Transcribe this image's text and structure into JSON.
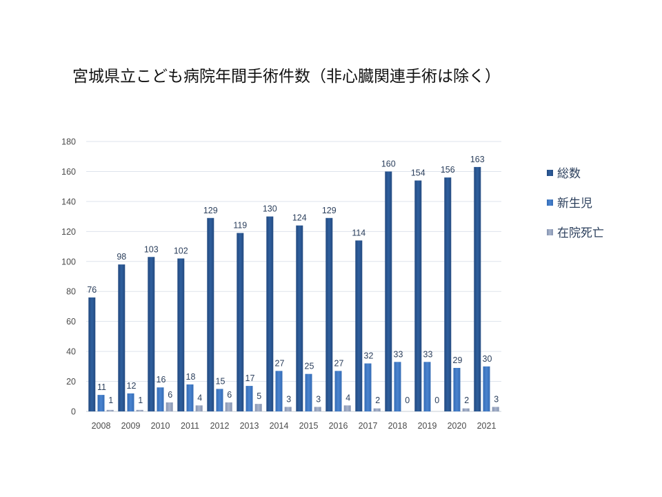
{
  "title": "宮城県立こども病院年間手術件数（非心臓関連手術は除く）",
  "chart_data": {
    "type": "bar",
    "title": "宮城県立こども病院年間手術件数（非心臓関連手術は除く）",
    "categories": [
      "2008",
      "2009",
      "2010",
      "2011",
      "2012",
      "2013",
      "2014",
      "2015",
      "2016",
      "2017",
      "2018",
      "2019",
      "2020",
      "2021"
    ],
    "series": [
      {
        "name": "総数",
        "values": [
          76,
          98,
          103,
          102,
          129,
          119,
          130,
          124,
          129,
          114,
          160,
          154,
          156,
          163
        ],
        "color": "#2d5a97"
      },
      {
        "name": "新生児",
        "values": [
          11,
          12,
          16,
          18,
          15,
          17,
          27,
          25,
          27,
          32,
          33,
          33,
          29,
          30
        ],
        "color": "#3f78c4"
      },
      {
        "name": "在院死亡",
        "values": [
          1,
          1,
          6,
          4,
          6,
          5,
          3,
          3,
          4,
          2,
          0,
          0,
          2,
          3
        ],
        "color": "#95a3bf"
      }
    ],
    "ylim": [
      0,
      180
    ],
    "yticks": [
      0,
      20,
      40,
      60,
      80,
      100,
      120,
      140,
      160,
      180
    ],
    "xlabel": "",
    "ylabel": "",
    "grid": true,
    "legend": "right"
  }
}
